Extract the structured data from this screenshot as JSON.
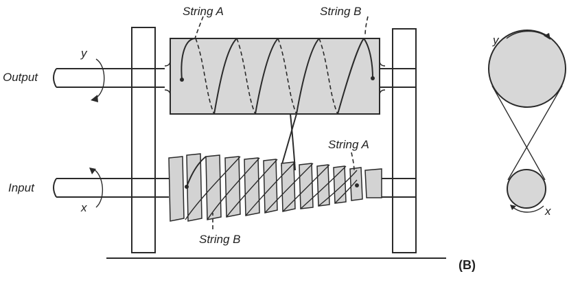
{
  "labels": {
    "output": "Output",
    "input": "Input",
    "string_a_top": "String A",
    "string_b_top": "String B",
    "string_a_bottom": "String A",
    "string_b_bottom": "String B",
    "y_left": "y",
    "x_left": "x",
    "y_right": "y",
    "x_right": "x",
    "panel": "(B)"
  }
}
